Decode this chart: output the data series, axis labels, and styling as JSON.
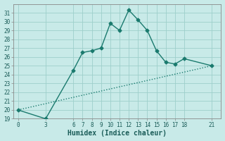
{
  "title": "",
  "xlabel": "Humidex (Indice chaleur)",
  "background_color": "#c8eae8",
  "grid_color": "#9ecfcb",
  "line_color": "#1a7a6e",
  "series1_x": [
    0,
    3,
    6,
    7,
    8,
    9,
    10,
    11,
    12,
    13,
    14,
    15,
    16,
    17,
    18,
    21
  ],
  "series1_y": [
    20,
    19,
    24.5,
    26.5,
    26.7,
    27,
    29.8,
    29,
    31.3,
    30.2,
    29,
    26.7,
    25.4,
    25.2,
    25.8,
    25
  ],
  "series2_x": [
    0,
    21
  ],
  "series2_y": [
    20,
    25
  ],
  "xlim": [
    -0.5,
    22
  ],
  "ylim": [
    19,
    32
  ],
  "xticks": [
    0,
    3,
    6,
    7,
    8,
    9,
    10,
    11,
    12,
    13,
    14,
    15,
    16,
    17,
    18,
    21
  ],
  "yticks": [
    19,
    20,
    21,
    22,
    23,
    24,
    25,
    26,
    27,
    28,
    29,
    30,
    31
  ],
  "marker": "D",
  "markersize": 2.5,
  "linewidth": 1.0,
  "fontsize_ticks": 5.5,
  "fontsize_label": 7
}
